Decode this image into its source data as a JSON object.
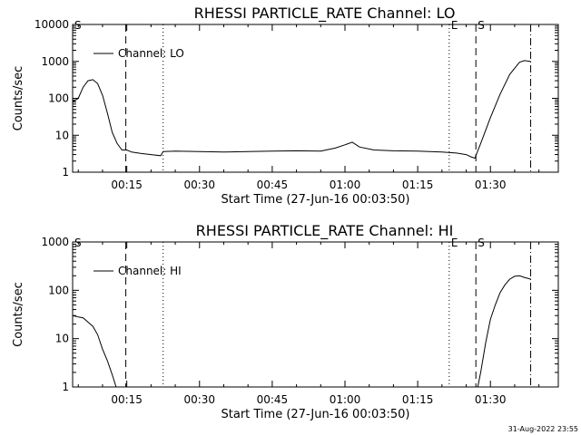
{
  "footer_stamp": "31-Aug-2022 23:55",
  "chart_data": [
    {
      "type": "line",
      "title": "RHESSI PARTICLE_RATE Channel: LO",
      "xlabel": "Start Time (27-Jun-16 00:03:50)",
      "ylabel": "Counts/sec",
      "yscale": "log",
      "ylim": [
        1,
        10000
      ],
      "xlim_minutes": [
        3.83,
        104.0
      ],
      "xticks": [
        {
          "min": 15,
          "label": "00:15"
        },
        {
          "min": 30,
          "label": "00:30"
        },
        {
          "min": 45,
          "label": "00:45"
        },
        {
          "min": 60,
          "label": "01:00"
        },
        {
          "min": 75,
          "label": "01:15"
        },
        {
          "min": 90,
          "label": "01:30"
        }
      ],
      "yticks": [
        {
          "value": 1,
          "label": "1"
        },
        {
          "value": 10,
          "label": "10"
        },
        {
          "value": 100,
          "label": "100"
        },
        {
          "value": 1000,
          "label": "1000"
        },
        {
          "value": 10000,
          "label": "10000"
        }
      ],
      "legend": {
        "label": "Channel: LO",
        "placement": "top-left"
      },
      "markers": [
        {
          "min": 3.83,
          "style": "dot-dash",
          "label": "S"
        },
        {
          "min": 14.8,
          "style": "dash",
          "label": ""
        },
        {
          "min": 22.5,
          "style": "dot",
          "label": ""
        },
        {
          "min": 81.5,
          "style": "dot",
          "label": "E"
        },
        {
          "min": 87.0,
          "style": "dash",
          "label": "S"
        },
        {
          "min": 98.3,
          "style": "dot-dash",
          "label": ""
        }
      ],
      "series": [
        {
          "x": [
            3.83,
            5.0,
            6.0,
            7.0,
            8.0,
            9.0,
            10.0,
            11.0,
            12.0,
            13.0,
            14.0,
            15.0,
            16.0,
            18.0,
            20.0,
            22.0,
            22.5,
            25.0,
            30.0,
            35.0,
            40.0,
            45.0,
            50.0,
            55.0,
            58.0,
            60.0,
            61.5,
            63.0,
            66.0,
            70.0,
            75.0,
            80.0,
            83.0,
            85.0,
            86.0,
            86.8,
            88.0,
            90.0,
            92.0,
            94.0,
            96.0,
            97.0,
            98.3
          ],
          "y": [
            80,
            100,
            200,
            300,
            320,
            250,
            120,
            40,
            12,
            6,
            4,
            4,
            3.5,
            3.2,
            3.0,
            2.8,
            3.6,
            3.7,
            3.6,
            3.5,
            3.6,
            3.7,
            3.8,
            3.7,
            4.5,
            5.5,
            6.5,
            4.8,
            4.0,
            3.8,
            3.7,
            3.5,
            3.3,
            3.0,
            2.6,
            2.4,
            6,
            30,
            130,
            450,
            950,
            1050,
            1000
          ]
        }
      ]
    },
    {
      "type": "line",
      "title": "RHESSI PARTICLE_RATE Channel: HI",
      "xlabel": "Start Time (27-Jun-16 00:03:50)",
      "ylabel": "Counts/sec",
      "yscale": "log",
      "ylim": [
        1,
        1000
      ],
      "xlim_minutes": [
        3.83,
        104.0
      ],
      "xticks": [
        {
          "min": 15,
          "label": "00:15"
        },
        {
          "min": 30,
          "label": "00:30"
        },
        {
          "min": 45,
          "label": "00:45"
        },
        {
          "min": 60,
          "label": "01:00"
        },
        {
          "min": 75,
          "label": "01:15"
        },
        {
          "min": 90,
          "label": "01:30"
        }
      ],
      "yticks": [
        {
          "value": 1,
          "label": "1"
        },
        {
          "value": 10,
          "label": "10"
        },
        {
          "value": 100,
          "label": "100"
        },
        {
          "value": 1000,
          "label": "1000"
        }
      ],
      "legend": {
        "label": "Channel: HI",
        "placement": "top-left"
      },
      "markers": [
        {
          "min": 3.83,
          "style": "dot-dash",
          "label": "S"
        },
        {
          "min": 14.8,
          "style": "dash",
          "label": ""
        },
        {
          "min": 22.5,
          "style": "dot",
          "label": ""
        },
        {
          "min": 81.5,
          "style": "dot",
          "label": "E"
        },
        {
          "min": 87.0,
          "style": "dash",
          "label": "S"
        },
        {
          "min": 98.3,
          "style": "dot-dash",
          "label": ""
        }
      ],
      "series": [
        {
          "x": [
            3.83,
            5.0,
            6.0,
            7.0,
            8.0,
            9.0,
            10.0,
            11.0,
            12.0,
            12.8,
            87.4,
            88.0,
            89.0,
            90.0,
            91.0,
            92.0,
            93.0,
            94.0,
            95.0,
            96.0,
            97.0,
            98.3
          ],
          "y": [
            30,
            28,
            27,
            22,
            18,
            12,
            6,
            3.5,
            1.8,
            1.0,
            1.0,
            2,
            8,
            25,
            50,
            90,
            130,
            170,
            195,
            200,
            185,
            170
          ]
        }
      ]
    }
  ]
}
